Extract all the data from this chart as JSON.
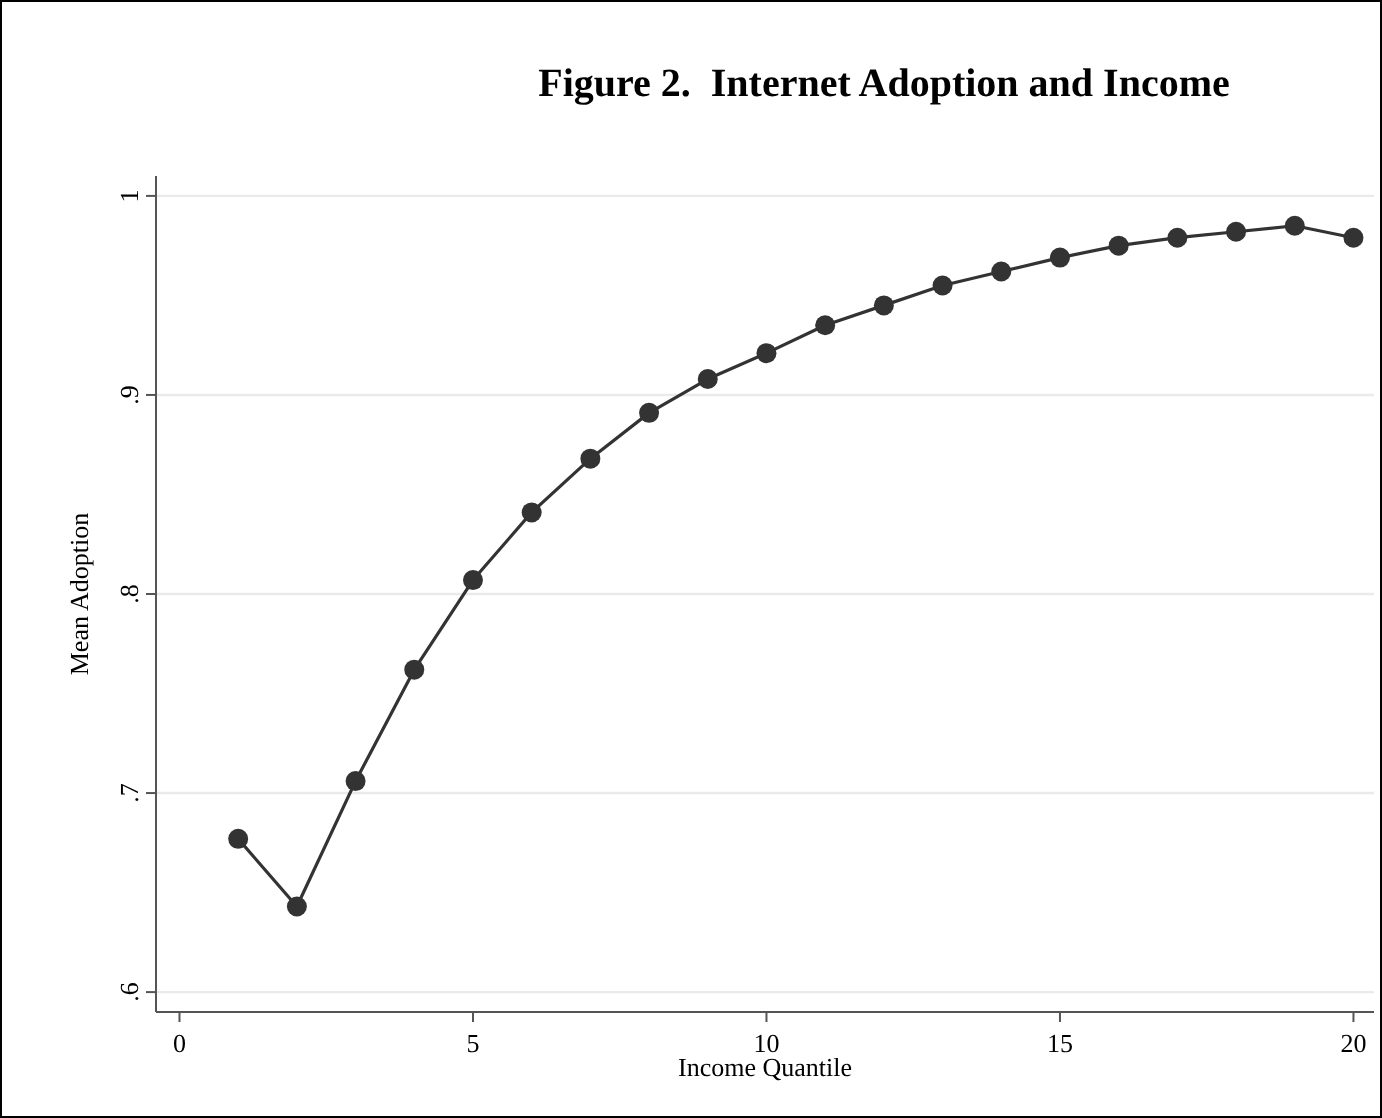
{
  "chart_data": {
    "type": "line",
    "title": "Figure 2.  Internet Adoption and Income",
    "xlabel": "Income Quantile",
    "ylabel": "Mean Adoption",
    "x": [
      1,
      2,
      3,
      4,
      5,
      6,
      7,
      8,
      9,
      10,
      11,
      12,
      13,
      14,
      15,
      16,
      17,
      18,
      19,
      20
    ],
    "series": [
      {
        "color": "#333333",
        "values": [
          0.677,
          0.643,
          0.706,
          0.762,
          0.807,
          0.841,
          0.868,
          0.891,
          0.908,
          0.921,
          0.935,
          0.945,
          0.955,
          0.962,
          0.969,
          0.975,
          0.979,
          0.982,
          0.985,
          0.979
        ]
      }
    ],
    "xlim": [
      -0.4,
      20.35
    ],
    "ylim": [
      0.59,
      1.01
    ],
    "xticks": [
      0,
      5,
      10,
      15,
      20
    ],
    "yticks": [
      {
        "value": 0.6,
        "label": ".6"
      },
      {
        "value": 0.7,
        "label": ".7"
      },
      {
        "value": 0.8,
        "label": ".8"
      },
      {
        "value": 0.9,
        "label": ".9"
      },
      {
        "value": 1,
        "label": "1"
      }
    ],
    "grid": "y",
    "marker": "circle",
    "line_style": "solid"
  }
}
